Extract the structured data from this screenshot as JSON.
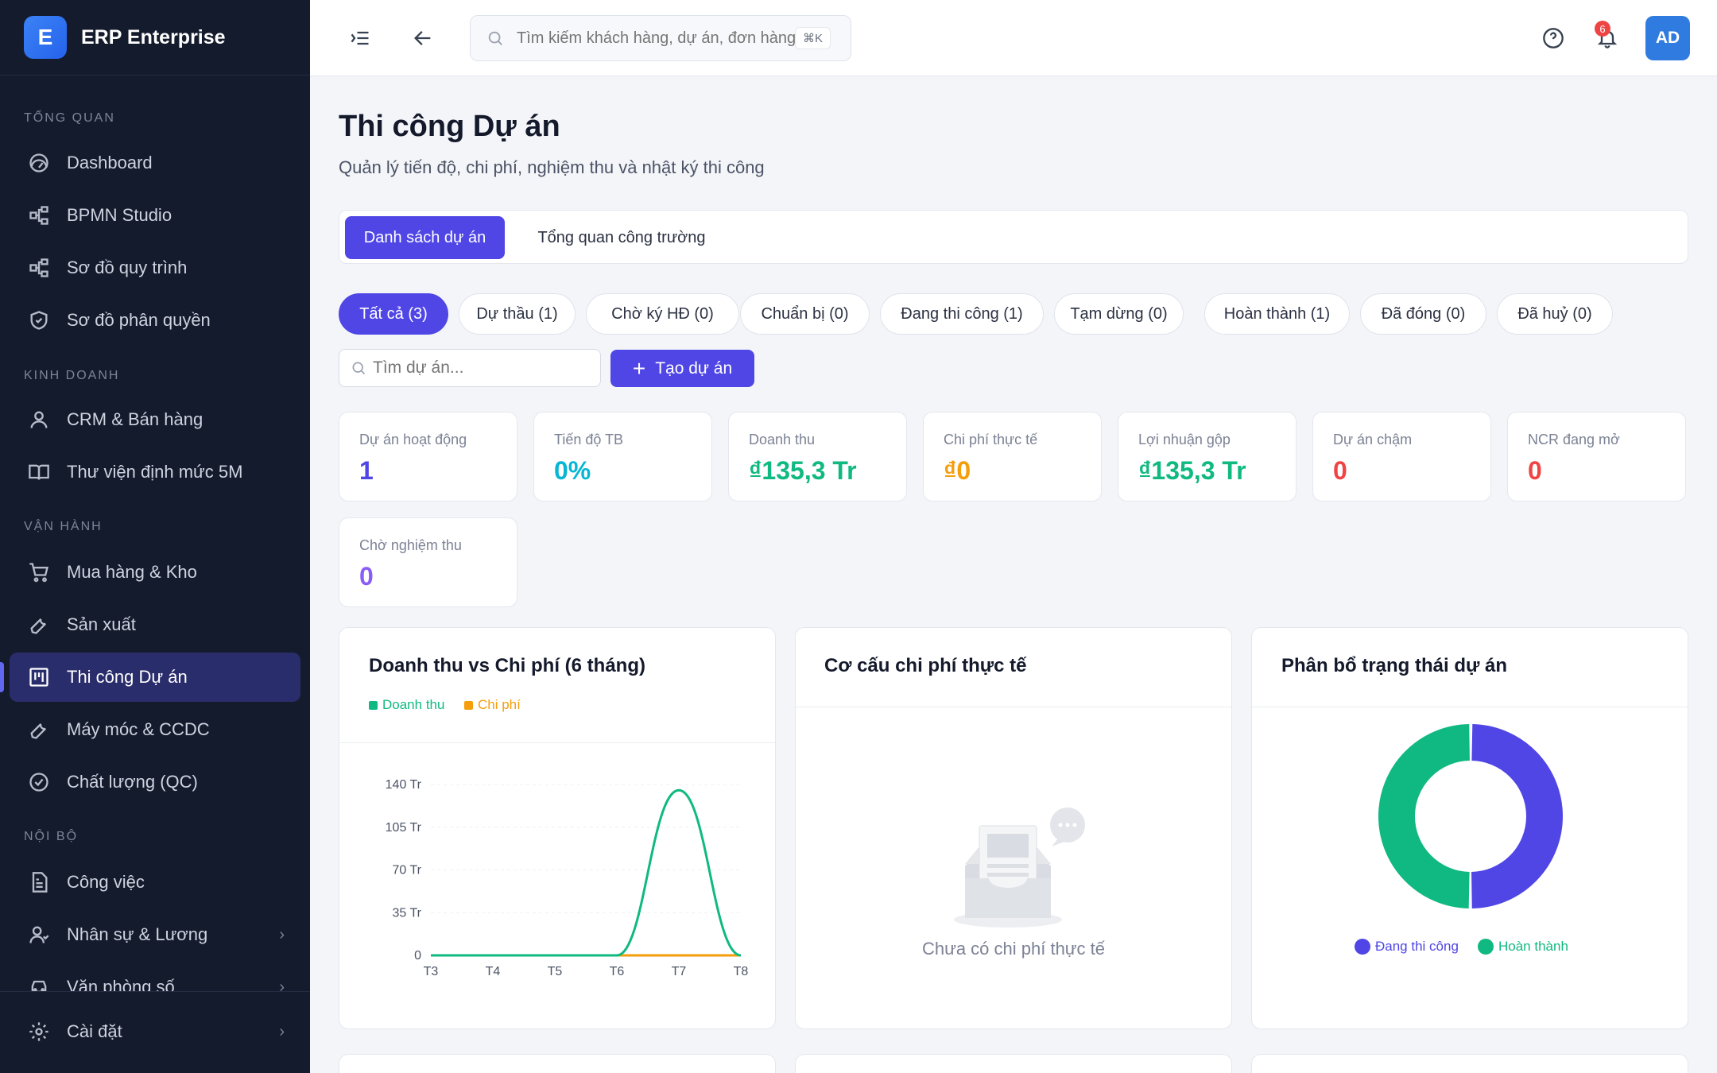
{
  "brand": {
    "logo_letter": "E",
    "name": "ERP Enterprise"
  },
  "sidebar": {
    "sections": [
      "Tổng quan",
      "Kinh doanh",
      "Vận hành",
      "Nội bộ"
    ],
    "items": [
      {
        "label": "Dashboard",
        "icon": "gauge-icon"
      },
      {
        "label": "BPMN Studio",
        "icon": "workflow-icon"
      },
      {
        "label": "Sơ đồ quy trình",
        "icon": "workflow-icon"
      },
      {
        "label": "Sơ đồ phân quyền",
        "icon": "shield-check-icon"
      },
      {
        "label": "CRM & Bán hàng",
        "icon": "user-icon"
      },
      {
        "label": "Thư viện định mức 5M",
        "icon": "book-icon"
      },
      {
        "label": "Mua hàng & Kho",
        "icon": "cart-icon"
      },
      {
        "label": "Sản xuất",
        "icon": "wrench-icon"
      },
      {
        "label": "Thi công Dự án",
        "icon": "kanban-icon",
        "active": true
      },
      {
        "label": "Máy móc & CCDC",
        "icon": "wrench-icon"
      },
      {
        "label": "Chất lượng (QC)",
        "icon": "check-circle-icon"
      },
      {
        "label": "Công việc",
        "icon": "file-text-icon"
      },
      {
        "label": "Nhân sự & Lương",
        "icon": "users-icon"
      },
      {
        "label": "Văn phòng số",
        "icon": "car-icon"
      }
    ],
    "settings_label": "Cài đặt"
  },
  "topbar": {
    "search_placeholder": "Tìm kiếm khách hàng, dự án, đơn hàng...",
    "shortcut": "⌘K",
    "notification_count": "6",
    "avatar_initials": "AD"
  },
  "page": {
    "title": "Thi công Dự án",
    "subtitle": "Quản lý tiến độ, chi phí, nghiệm thu và nhật ký thi công"
  },
  "tabs": [
    "Danh sách dự án",
    "Tổng quan công trường"
  ],
  "filters": [
    "Tất cả (3)",
    "Dự thầu (1)",
    "Chờ ký HĐ (0)",
    "Chuẩn bị (0)",
    "Đang thi công (1)",
    "Tạm dừng (0)",
    "Hoàn thành (1)",
    "Đã đóng (0)",
    "Đã huỷ (0)"
  ],
  "project_search_placeholder": "Tìm dự án...",
  "create_button": "Tạo dự án",
  "stats": [
    {
      "label": "Dự án hoạt động",
      "value": "1",
      "color": "#4f46e5"
    },
    {
      "label": "Tiến độ TB",
      "value": "0%",
      "color": "#06b6d4"
    },
    {
      "label": "Doanh thu",
      "value": "₫135,3 Tr",
      "color": "#10b981"
    },
    {
      "label": "Chi phí thực tế",
      "value": "₫0",
      "color": "#f59e0b"
    },
    {
      "label": "Lợi nhuận gộp",
      "value": "₫135,3 Tr",
      "color": "#10b981"
    },
    {
      "label": "Dự án chậm",
      "value": "0",
      "color": "#ef4444"
    },
    {
      "label": "NCR đang mở",
      "value": "0",
      "color": "#ef4444"
    },
    {
      "label": "Chờ nghiệm thu",
      "value": "0",
      "color": "#8b5cf6"
    }
  ],
  "cards": {
    "revenue_cost_title": "Doanh thu vs Chi phí (6 tháng)",
    "cost_structure_title": "Cơ cấu chi phí thực tế",
    "cost_structure_empty": "Chưa có chi phí thực tế",
    "status_title": "Phân bổ trạng thái dự án"
  },
  "chart_data": [
    {
      "type": "line",
      "title": "Doanh thu vs Chi phí (6 tháng)",
      "categories": [
        "T3",
        "T4",
        "T5",
        "T6",
        "T7",
        "T8"
      ],
      "yticks": [
        "0",
        "35 Tr",
        "70 Tr",
        "105 Tr",
        "140 Tr"
      ],
      "ylim": [
        0,
        140
      ],
      "series": [
        {
          "name": "Doanh thu",
          "color": "#10b981",
          "values": [
            0,
            0,
            0,
            0,
            135.3,
            0
          ]
        },
        {
          "name": "Chi phí",
          "color": "#f59e0b",
          "values": [
            0,
            0,
            0,
            0,
            0,
            0
          ]
        }
      ],
      "grid": true,
      "legend": "top-left"
    },
    {
      "type": "pie",
      "title": "Phân bổ trạng thái dự án",
      "series": [
        {
          "name": "Đang thi công",
          "color": "#4f46e5",
          "value": 1
        },
        {
          "name": "Hoàn thành",
          "color": "#10b981",
          "value": 1
        }
      ],
      "legend": "bottom"
    }
  ]
}
